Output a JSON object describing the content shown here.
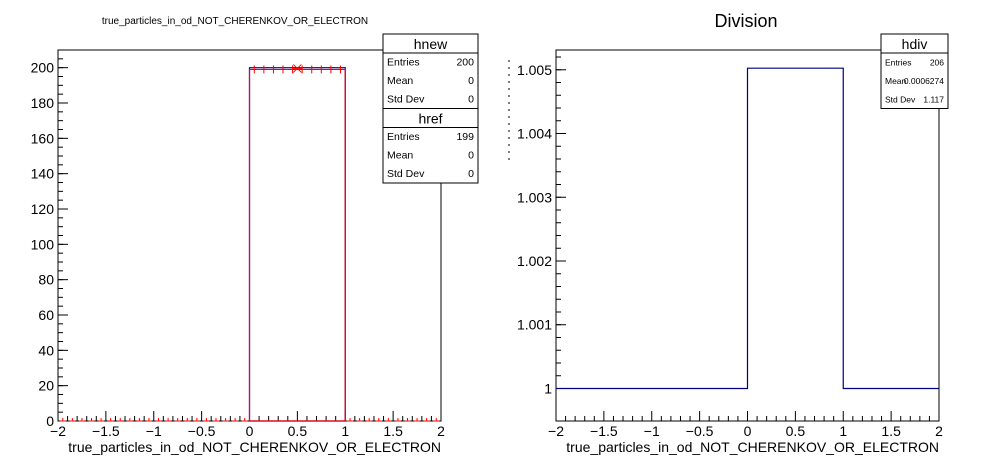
{
  "chart_data": [
    {
      "type": "histogram",
      "title": "true_particles_in_od_NOT_CHERENKOV_OR_ELECTRON",
      "xlabel": "true_particles_in_od_NOT_CHERENKOV_OR_ELECTRON",
      "ylabel": "",
      "xlim": [
        -2,
        2
      ],
      "ylim": [
        0,
        210
      ],
      "x_ticks": [
        "−2",
        "−1.5",
        "−1",
        "−0.5",
        "0",
        "0.5",
        "1",
        "1.5",
        "2"
      ],
      "y_ticks": [
        "0",
        "20",
        "40",
        "60",
        "80",
        "100",
        "120",
        "140",
        "160",
        "180",
        "200"
      ],
      "series": [
        {
          "name": "hnew",
          "color": "#0000cc",
          "bins": [
            {
              "x0": 0,
              "x1": 1,
              "y": 200
            }
          ]
        },
        {
          "name": "href",
          "color": "#ff0000",
          "bins": [
            {
              "x0": 0,
              "x1": 1,
              "y": 199
            }
          ],
          "markers": true
        }
      ],
      "stat_boxes": [
        {
          "title": "hnew",
          "rows": [
            [
              "Entries",
              "200"
            ],
            [
              "Mean",
              "0"
            ],
            [
              "Std Dev",
              "0"
            ]
          ]
        },
        {
          "title": "href",
          "rows": [
            [
              "Entries",
              "199"
            ],
            [
              "Mean",
              "0"
            ],
            [
              "Std Dev",
              "0"
            ]
          ]
        }
      ]
    },
    {
      "type": "histogram",
      "title": "Division",
      "xlabel": "true_particles_in_od_NOT_CHERENKOV_OR_ELECTRON",
      "ylabel": "",
      "xlim": [
        -2,
        2
      ],
      "ylim": [
        0.99949,
        1.00531
      ],
      "x_ticks": [
        "−2",
        "−1.5",
        "−1",
        "−0.5",
        "0",
        "0.5",
        "1",
        "1.5",
        "2"
      ],
      "y_ticks": [
        "1",
        "1.001",
        "1.002",
        "1.003",
        "1.004",
        "1.005"
      ],
      "series": [
        {
          "name": "hdiv",
          "color": "#000080",
          "bins": [
            {
              "x0": -2,
              "x1": 0,
              "y": 1
            },
            {
              "x0": 0,
              "x1": 1,
              "y": 1.005025
            },
            {
              "x0": 1,
              "x1": 2,
              "y": 1
            }
          ]
        }
      ],
      "stat_boxes": [
        {
          "title": "hdiv",
          "rows": [
            [
              "Entries",
              "206"
            ],
            [
              "Mean",
              "0.0006274"
            ],
            [
              "Std Dev",
              "1.117"
            ]
          ]
        }
      ]
    }
  ]
}
